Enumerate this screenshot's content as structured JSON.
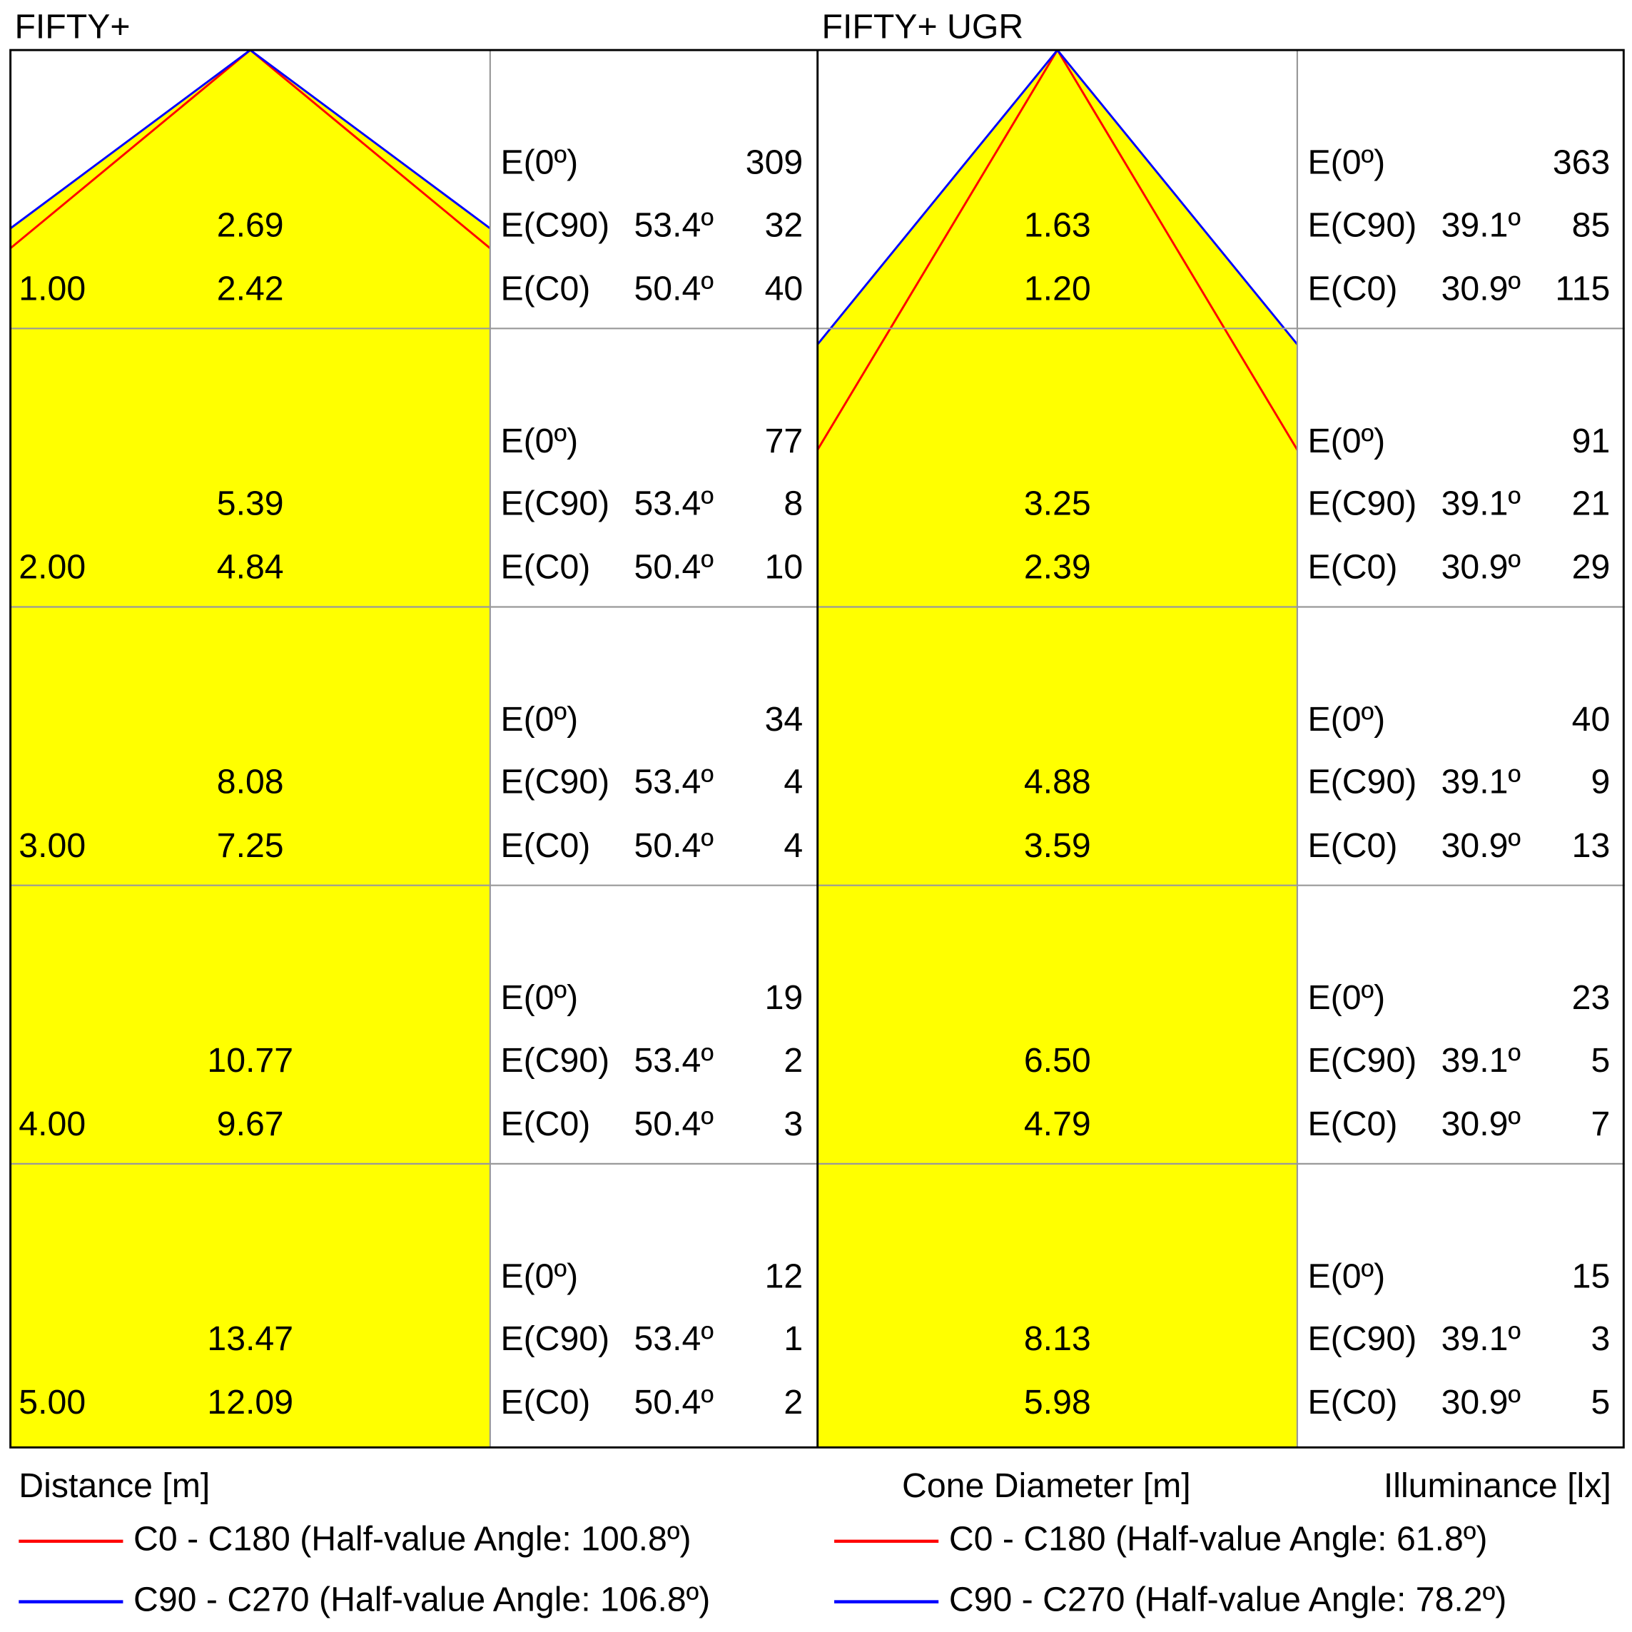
{
  "footer": {
    "distance": "Distance [m]",
    "diameter": "Cone Diameter [m]",
    "illuminance": "Illuminance [lx]"
  },
  "panels": [
    {
      "title": "FIFTY+",
      "legend": [
        {
          "text": "C0 - C180 (Half-value Angle: 100.8º)",
          "color": "#ff0000"
        },
        {
          "text": "C90 - C270 (Half-value Angle: 106.8º)",
          "color": "#0000ff"
        }
      ],
      "rows": [
        {
          "distance": "1.00",
          "d90": "2.69",
          "d0": "2.42",
          "e0": {
            "label": "E(0º)",
            "value": "309"
          },
          "e90": {
            "label": "E(C90)",
            "angle": "53.4º",
            "value": "32"
          },
          "ec0": {
            "label": "E(C0)",
            "angle": "50.4º",
            "value": "40"
          }
        },
        {
          "distance": "2.00",
          "d90": "5.39",
          "d0": "4.84",
          "e0": {
            "label": "E(0º)",
            "value": "77"
          },
          "e90": {
            "label": "E(C90)",
            "angle": "53.4º",
            "value": "8"
          },
          "ec0": {
            "label": "E(C0)",
            "angle": "50.4º",
            "value": "10"
          }
        },
        {
          "distance": "3.00",
          "d90": "8.08",
          "d0": "7.25",
          "e0": {
            "label": "E(0º)",
            "value": "34"
          },
          "e90": {
            "label": "E(C90)",
            "angle": "53.4º",
            "value": "4"
          },
          "ec0": {
            "label": "E(C0)",
            "angle": "50.4º",
            "value": "4"
          }
        },
        {
          "distance": "4.00",
          "d90": "10.77",
          "d0": "9.67",
          "e0": {
            "label": "E(0º)",
            "value": "19"
          },
          "e90": {
            "label": "E(C90)",
            "angle": "53.4º",
            "value": "2"
          },
          "ec0": {
            "label": "E(C0)",
            "angle": "50.4º",
            "value": "3"
          }
        },
        {
          "distance": "5.00",
          "d90": "13.47",
          "d0": "12.09",
          "e0": {
            "label": "E(0º)",
            "value": "12"
          },
          "e90": {
            "label": "E(C90)",
            "angle": "53.4º",
            "value": "1"
          },
          "ec0": {
            "label": "E(C0)",
            "angle": "50.4º",
            "value": "2"
          }
        }
      ]
    },
    {
      "title": "FIFTY+ UGR",
      "legend": [
        {
          "text": "C0 - C180 (Half-value Angle: 61.8º)",
          "color": "#ff0000"
        },
        {
          "text": "C90 - C270 (Half-value Angle: 78.2º)",
          "color": "#0000ff"
        }
      ],
      "rows": [
        {
          "distance": null,
          "d90": "1.63",
          "d0": "1.20",
          "e0": {
            "label": "E(0º)",
            "value": "363"
          },
          "e90": {
            "label": "E(C90)",
            "angle": "39.1º",
            "value": "85"
          },
          "ec0": {
            "label": "E(C0)",
            "angle": "30.9º",
            "value": "115"
          }
        },
        {
          "distance": null,
          "d90": "3.25",
          "d0": "2.39",
          "e0": {
            "label": "E(0º)",
            "value": "91"
          },
          "e90": {
            "label": "E(C90)",
            "angle": "39.1º",
            "value": "21"
          },
          "ec0": {
            "label": "E(C0)",
            "angle": "30.9º",
            "value": "29"
          }
        },
        {
          "distance": null,
          "d90": "4.88",
          "d0": "3.59",
          "e0": {
            "label": "E(0º)",
            "value": "40"
          },
          "e90": {
            "label": "E(C90)",
            "angle": "39.1º",
            "value": "9"
          },
          "ec0": {
            "label": "E(C0)",
            "angle": "30.9º",
            "value": "13"
          }
        },
        {
          "distance": null,
          "d90": "6.50",
          "d0": "4.79",
          "e0": {
            "label": "E(0º)",
            "value": "23"
          },
          "e90": {
            "label": "E(C90)",
            "angle": "39.1º",
            "value": "5"
          },
          "ec0": {
            "label": "E(C0)",
            "angle": "30.9º",
            "value": "7"
          }
        },
        {
          "distance": null,
          "d90": "8.13",
          "d0": "5.98",
          "e0": {
            "label": "E(0º)",
            "value": "15"
          },
          "e90": {
            "label": "E(C90)",
            "angle": "39.1º",
            "value": "3"
          },
          "ec0": {
            "label": "E(C0)",
            "angle": "30.9º",
            "value": "5"
          }
        }
      ]
    }
  ]
}
